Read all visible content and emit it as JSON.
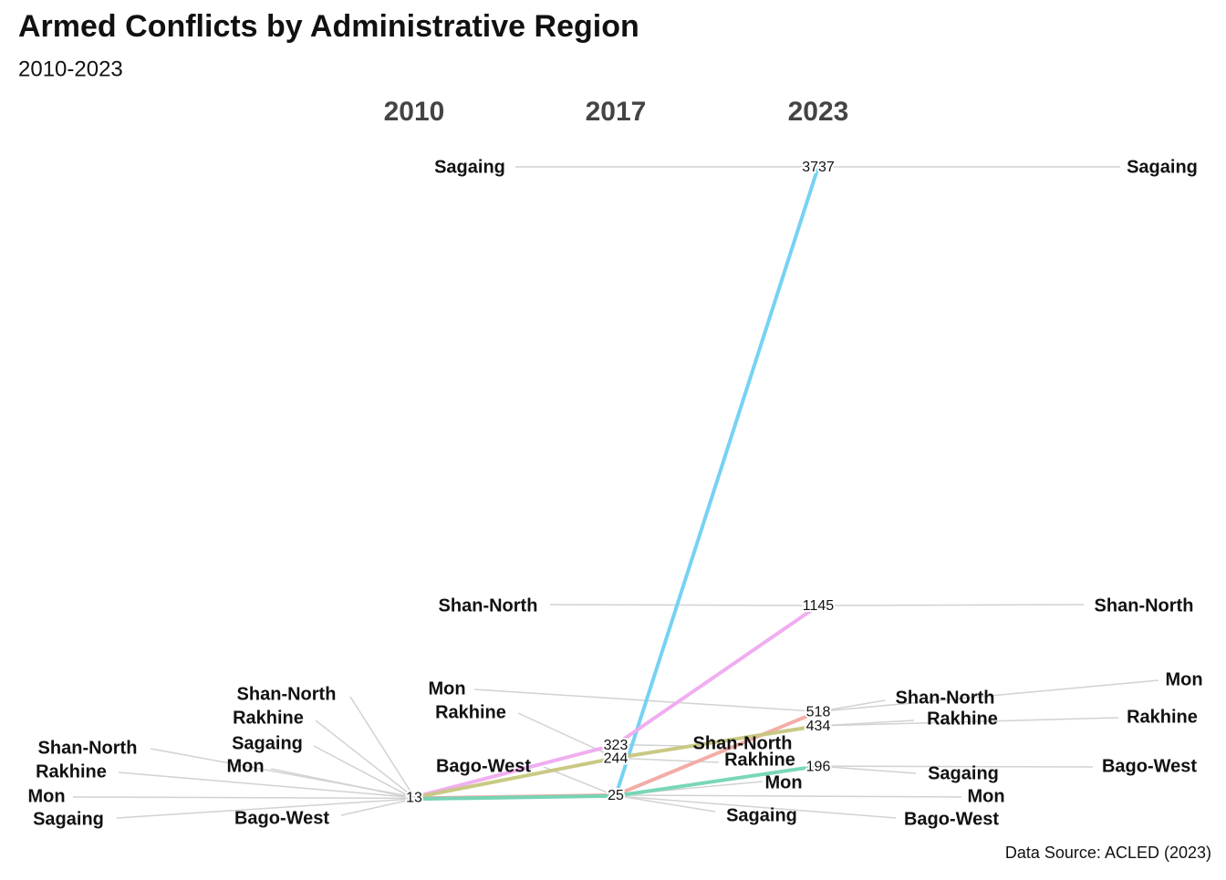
{
  "chart_data": {
    "type": "slope",
    "title": "Armed Conflicts by Administrative Region",
    "subtitle": "2010-2023",
    "caption": "Data Source: ACLED (2023)",
    "categories": [
      "2010",
      "2017",
      "2023"
    ],
    "series": [
      {
        "name": "Sagaing",
        "color": "#6fd0f2",
        "values": [
          3,
          22,
          3737
        ],
        "value_labels": [
          null,
          null,
          "3737"
        ]
      },
      {
        "name": "Shan-North",
        "color": "#efaaef",
        "values": [
          13,
          323,
          1145
        ],
        "value_labels": [
          "13",
          "323",
          "1145"
        ]
      },
      {
        "name": "Mon",
        "color": "#f2a9a2",
        "values": [
          6,
          25,
          518
        ],
        "value_labels": [
          null,
          "25",
          "518"
        ]
      },
      {
        "name": "Rakhine",
        "color": "#c6c67e",
        "values": [
          10,
          244,
          434
        ],
        "value_labels": [
          null,
          "244",
          "434"
        ]
      },
      {
        "name": "Bago-West",
        "color": "#72d5b4",
        "values": [
          2,
          20,
          196
        ],
        "value_labels": [
          null,
          null,
          "196"
        ]
      }
    ]
  }
}
